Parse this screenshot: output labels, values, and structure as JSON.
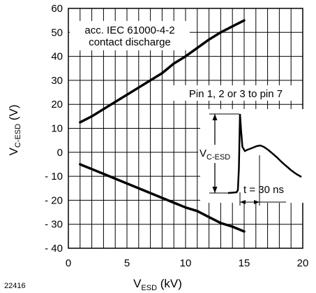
{
  "chart_data": {
    "type": "line",
    "x": [
      1,
      2,
      3,
      4,
      5,
      6,
      7,
      8,
      9,
      10,
      11,
      12,
      13,
      14,
      15
    ],
    "series": [
      {
        "values": [
          12.5,
          15,
          18,
          21,
          24,
          27,
          30,
          33,
          37,
          40,
          43.5,
          47,
          50,
          52.5,
          55
        ]
      },
      {
        "values": [
          -5,
          -7,
          -9,
          -11,
          -13,
          -15,
          -17,
          -19,
          -21,
          -23,
          -24.5,
          -27,
          -29.5,
          -31,
          -33
        ]
      }
    ],
    "xlim": [
      0,
      20
    ],
    "ylim": [
      -40,
      60
    ],
    "xticks": [
      0,
      5,
      10,
      15,
      20
    ],
    "yticks": [
      60,
      50,
      40,
      30,
      20,
      10,
      0,
      -10,
      -20,
      -30,
      -40
    ],
    "ytick_labels": [
      "60",
      "50",
      "40",
      "30",
      "20",
      "10",
      "0",
      "- 10",
      "- 20",
      "- 30",
      "- 40"
    ],
    "xlabel": {
      "main": "V",
      "sub": "ESD",
      "unit": " (kV)"
    },
    "ylabel": {
      "main": "V",
      "sub": "C-ESD",
      "unit": " (V)"
    },
    "grid": true,
    "annotations": {
      "standard_line1": "acc. IEC 61000-4-2",
      "standard_line2": "contact discharge",
      "pins": "Pin 1, 2 or 3 to pin 7",
      "inset_voltage_main": "V",
      "inset_voltage_sub": "C-ESD",
      "inset_time": "t = 30 ns"
    },
    "figure_id": "22416"
  }
}
